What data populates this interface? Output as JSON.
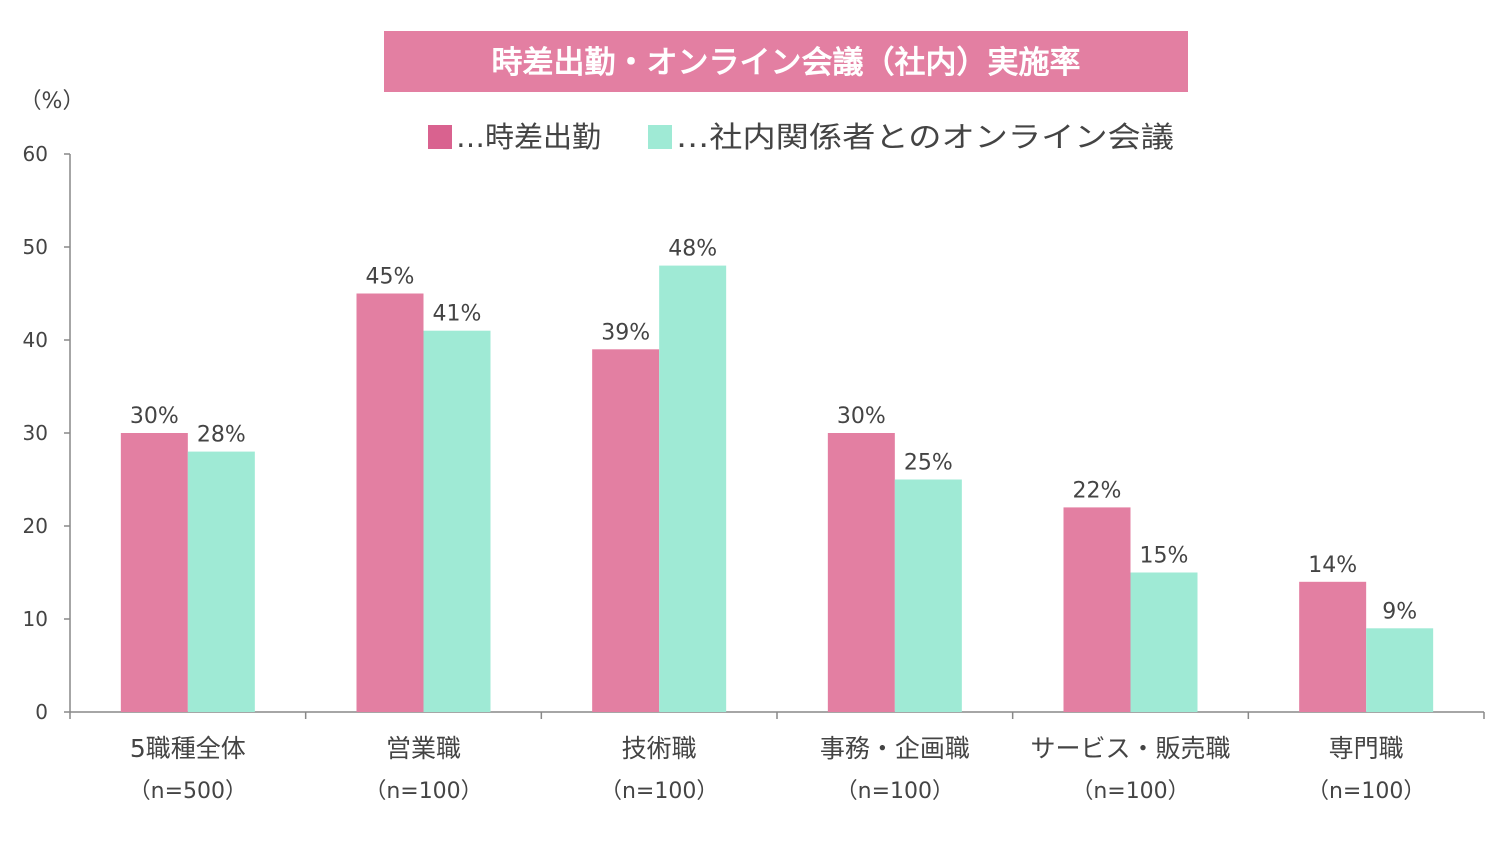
{
  "chart_data": {
    "type": "bar",
    "title": "時差出勤・オンライン会議（社内）実施率",
    "ylabel": "（%）",
    "ylim": [
      0,
      60
    ],
    "yticks": [
      0,
      10,
      20,
      30,
      40,
      50,
      60
    ],
    "grid": false,
    "legend_position": "top-center",
    "categories": [
      {
        "label": "5職種全体",
        "sub": "（n=500）"
      },
      {
        "label": "営業職",
        "sub": "（n=100）"
      },
      {
        "label": "技術職",
        "sub": "（n=100）"
      },
      {
        "label": "事務・企画職",
        "sub": "（n=100）"
      },
      {
        "label": "サービス・販売職",
        "sub": "（n=100）"
      },
      {
        "label": "専門職",
        "sub": "（n=100）"
      }
    ],
    "series": [
      {
        "name": "時差出勤",
        "legend_label": "…時差出勤",
        "color": "#e37fa2",
        "legend_color": "#d9628f",
        "values": [
          30,
          45,
          39,
          30,
          22,
          14
        ],
        "labels": [
          "30%",
          "45%",
          "39%",
          "30%",
          "22%",
          "14%"
        ]
      },
      {
        "name": "社内関係者とのオンライン会議",
        "legend_label": "…社内関係者とのオンライン会議",
        "color": "#9fead5",
        "legend_color": "#9fead5",
        "values": [
          28,
          41,
          48,
          25,
          15,
          9
        ],
        "labels": [
          "28%",
          "41%",
          "48%",
          "25%",
          "15%",
          "9%"
        ]
      }
    ],
    "colors": {
      "title_bg": "#e37fa2",
      "title_text": "#ffffff",
      "axis": "#888888",
      "text": "#444444"
    }
  }
}
